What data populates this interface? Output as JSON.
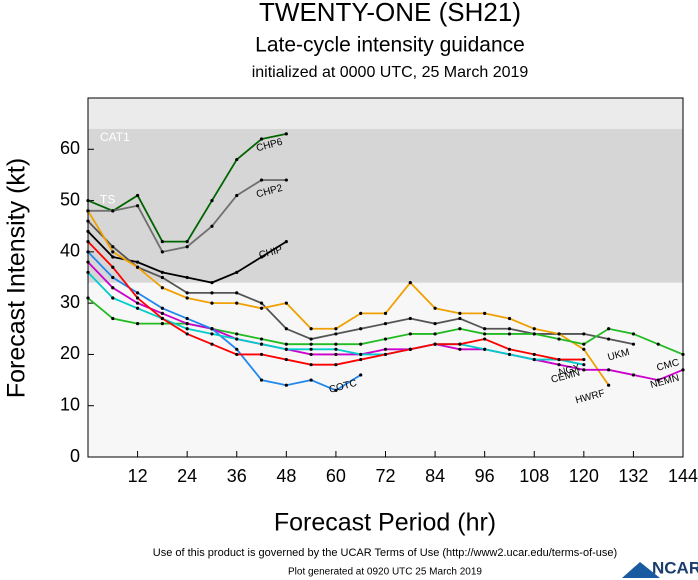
{
  "chart_data": {
    "type": "line",
    "title": "TWENTY-ONE (SH21)",
    "subtitle": "Late-cycle intensity guidance",
    "subtitle2": "initialized at 0000 UTC, 25 March 2019",
    "x_label": "Forecast Period (hr)",
    "y_label": "Forecast Intensity (kt)",
    "xlim": [
      0,
      144
    ],
    "xticks": [
      12,
      24,
      36,
      48,
      60,
      72,
      84,
      96,
      108,
      120,
      132,
      144
    ],
    "ylim": [
      0,
      70
    ],
    "yticks": [
      0,
      10,
      20,
      30,
      40,
      50,
      60
    ],
    "bands": [
      {
        "label": "TS",
        "from": 34,
        "to": 64,
        "color": "#d6d6d6"
      },
      {
        "label": "CAT1",
        "from": 64,
        "to": 70,
        "color": "#ebebeb"
      }
    ],
    "series": [
      {
        "name": "CHP6",
        "color": "#006400",
        "x": [
          0,
          6,
          12,
          18,
          24,
          30,
          36,
          42,
          48
        ],
        "values": [
          50,
          48,
          51,
          42,
          42,
          50,
          58,
          62,
          63
        ]
      },
      {
        "name": "CHP2",
        "color": "#707070",
        "x": [
          0,
          6,
          12,
          18,
          24,
          30,
          36,
          42,
          48
        ],
        "values": [
          48,
          48,
          49,
          40,
          41,
          45,
          51,
          54,
          54
        ]
      },
      {
        "name": "CHIP",
        "color": "#000000",
        "x": [
          0,
          6,
          12,
          18,
          24,
          30,
          36,
          42,
          48
        ],
        "values": [
          44,
          39,
          38,
          36,
          35,
          34,
          36,
          39,
          42
        ]
      },
      {
        "name": "UKM",
        "color": "#555555",
        "x": [
          0,
          6,
          12,
          18,
          24,
          30,
          36,
          42,
          48,
          54,
          60,
          66,
          72,
          78,
          84,
          90,
          96,
          102,
          108,
          114,
          120,
          126,
          132
        ],
        "values": [
          46,
          41,
          37,
          35,
          32,
          32,
          32,
          30,
          25,
          23,
          24,
          25,
          26,
          27,
          26,
          27,
          25,
          25,
          24,
          24,
          24,
          23,
          22
        ]
      },
      {
        "name": "HWRF",
        "color": "#f0a000",
        "x": [
          0,
          6,
          12,
          18,
          24,
          30,
          36,
          42,
          48,
          54,
          60,
          66,
          72,
          78,
          84,
          90,
          96,
          102,
          108,
          114,
          120,
          126
        ],
        "values": [
          48,
          40,
          37,
          33,
          31,
          30,
          30,
          29,
          30,
          25,
          25,
          28,
          28,
          34,
          29,
          28,
          28,
          27,
          25,
          24,
          21,
          14
        ]
      },
      {
        "name": "CMC",
        "color": "#22bb22",
        "x": [
          0,
          6,
          12,
          18,
          24,
          30,
          36,
          42,
          48,
          54,
          60,
          66,
          72,
          78,
          84,
          90,
          96,
          102,
          108,
          114,
          120,
          126,
          132,
          138,
          144
        ],
        "values": [
          31,
          27,
          26,
          26,
          26,
          25,
          24,
          23,
          22,
          22,
          22,
          22,
          23,
          24,
          24,
          25,
          24,
          24,
          24,
          23,
          22,
          25,
          24,
          22,
          20
        ]
      },
      {
        "name": "NEMN",
        "color": "#cc00cc",
        "x": [
          0,
          6,
          12,
          18,
          24,
          30,
          36,
          42,
          48,
          54,
          60,
          66,
          72,
          78,
          84,
          90,
          96,
          102,
          108,
          114,
          120,
          126,
          132,
          138,
          144
        ],
        "values": [
          38,
          33,
          30,
          28,
          26,
          25,
          23,
          22,
          21,
          20,
          20,
          20,
          21,
          21,
          22,
          21,
          21,
          20,
          19,
          18,
          17,
          17,
          16,
          15,
          17
        ]
      },
      {
        "name": "COTC",
        "color": "#2288ee",
        "x": [
          0,
          6,
          12,
          18,
          24,
          30,
          36,
          42,
          48,
          54,
          60,
          66
        ],
        "values": [
          40,
          35,
          32,
          29,
          27,
          25,
          21,
          15,
          14,
          15,
          13,
          16
        ]
      },
      {
        "name": "CEMN",
        "color": "#00cccc",
        "x": [
          0,
          6,
          12,
          18,
          24,
          30,
          36,
          42,
          48,
          54,
          60,
          66,
          72,
          78,
          84,
          90,
          96,
          102,
          108,
          114,
          120
        ],
        "values": [
          36,
          31,
          29,
          27,
          25,
          24,
          23,
          22,
          21,
          21,
          21,
          20,
          20,
          21,
          22,
          22,
          21,
          20,
          19,
          19,
          18
        ]
      },
      {
        "name": "NGX",
        "color": "#ff0000",
        "x": [
          0,
          6,
          12,
          18,
          24,
          30,
          36,
          42,
          48,
          54,
          60,
          66,
          72,
          78,
          84,
          90,
          96,
          102,
          108,
          114,
          120
        ],
        "values": [
          42,
          37,
          31,
          27,
          24,
          22,
          20,
          20,
          19,
          18,
          18,
          19,
          20,
          21,
          22,
          22,
          23,
          21,
          20,
          19,
          19
        ]
      }
    ],
    "footer": "Use of this product is governed by the UCAR Terms of Use (http://www2.ucar.edu/terms-of-use)",
    "footer2": "Plot generated at 0920 UTC  25 March 2019",
    "logo": "NCAR"
  }
}
